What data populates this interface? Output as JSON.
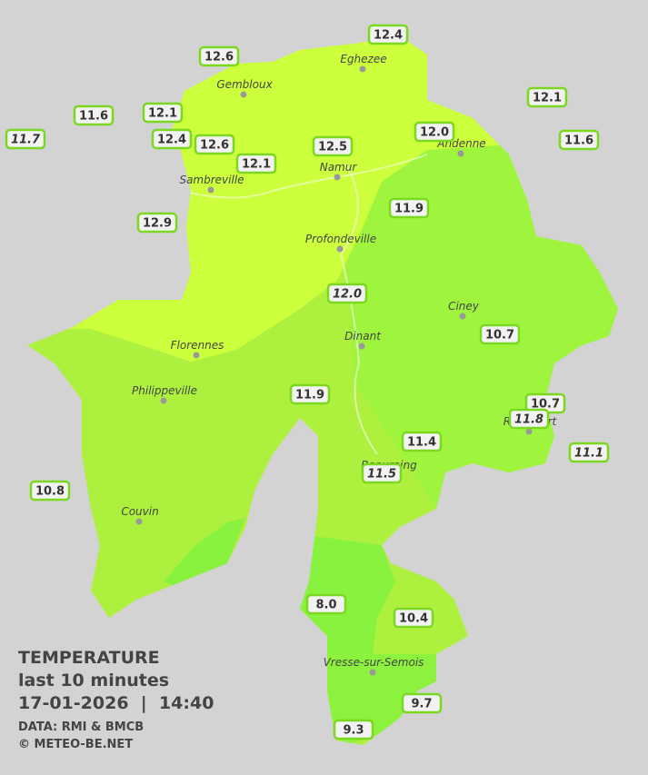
{
  "legend": {
    "title": "TEMPERATURE",
    "subtitle": "last 10 minutes",
    "timestamp": "17-01-2026  |  14:40",
    "source": "DATA: RMI & BMCB",
    "credit": "© METEO-BE.NET"
  },
  "cities": [
    {
      "name": "Eghezee"
    },
    {
      "name": "Gembloux"
    },
    {
      "name": "Andenne"
    },
    {
      "name": "Sambreville"
    },
    {
      "name": "Namur"
    },
    {
      "name": "Profondeville"
    },
    {
      "name": "Ciney"
    },
    {
      "name": "Dinant"
    },
    {
      "name": "Florennes"
    },
    {
      "name": "Philippeville"
    },
    {
      "name": "Rochefort"
    },
    {
      "name": "Beauraing"
    },
    {
      "name": "Couvin"
    },
    {
      "name": "Vresse-sur-Semois"
    }
  ],
  "stations": [
    {
      "label": "12.4",
      "italic": false
    },
    {
      "label": "12.6",
      "italic": false
    },
    {
      "label": "12.1",
      "italic": false
    },
    {
      "label": "11.6",
      "italic": false
    },
    {
      "label": "12.1",
      "italic": false
    },
    {
      "label": "11.7",
      "italic": true
    },
    {
      "label": "12.4",
      "italic": false
    },
    {
      "label": "12.6",
      "italic": false
    },
    {
      "label": "12.5",
      "italic": false
    },
    {
      "label": "12.0",
      "italic": false
    },
    {
      "label": "11.6",
      "italic": false
    },
    {
      "label": "12.1",
      "italic": false
    },
    {
      "label": "11.9",
      "italic": false
    },
    {
      "label": "12.9",
      "italic": false
    },
    {
      "label": "12.0",
      "italic": true
    },
    {
      "label": "10.7",
      "italic": false
    },
    {
      "label": "11.9",
      "italic": false
    },
    {
      "label": "10.7",
      "italic": false
    },
    {
      "label": "11.8",
      "italic": true
    },
    {
      "label": "11.4",
      "italic": false
    },
    {
      "label": "11.5",
      "italic": true
    },
    {
      "label": "11.1",
      "italic": true
    },
    {
      "label": "10.8",
      "italic": false
    },
    {
      "label": "8.0",
      "italic": false
    },
    {
      "label": "10.4",
      "italic": false
    },
    {
      "label": "9.7",
      "italic": false
    },
    {
      "label": "9.3",
      "italic": false
    }
  ]
}
